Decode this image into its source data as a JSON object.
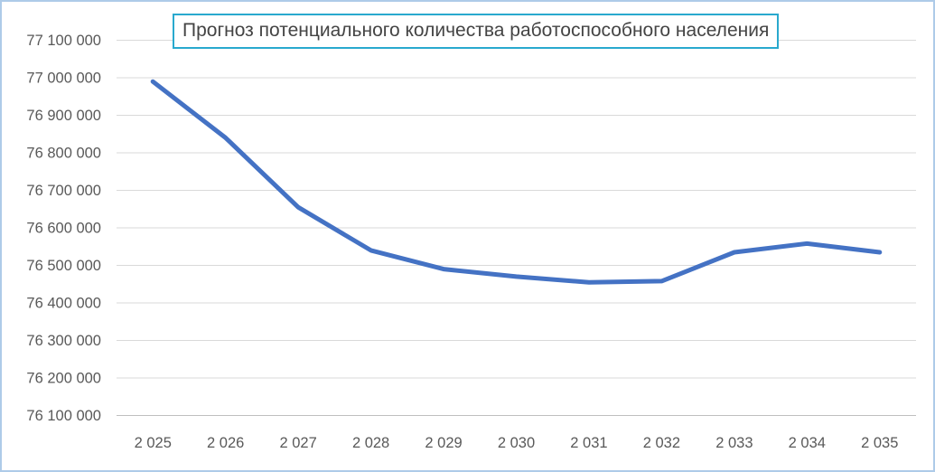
{
  "window": {
    "background_color": "#ffffff",
    "frame_border_color": "#aecbe8"
  },
  "title": {
    "text": "Прогноз потенциального количества работоспособного населения",
    "border_color": "#29a9ce",
    "text_color": "#444444"
  },
  "chart_data": {
    "type": "line",
    "title": "Прогноз потенциального количества работоспособного населения",
    "categories": [
      "2 025",
      "2 026",
      "2 027",
      "2 028",
      "2 029",
      "2 030",
      "2 031",
      "2 032",
      "2 033",
      "2 034",
      "2 035"
    ],
    "values": [
      76990000,
      76840000,
      76655000,
      76540000,
      76490000,
      76470000,
      76455000,
      76458000,
      76535000,
      76558000,
      76535000
    ],
    "xlabel": "",
    "ylabel": "",
    "ylim": [
      76100000,
      77100000
    ],
    "ytick_step": 100000,
    "ytick_labels": [
      "77 100 000",
      "77 000 000",
      "76 900 000",
      "76 800 000",
      "76 700 000",
      "76 600 000",
      "76 500 000",
      "76 400 000",
      "76 300 000",
      "76 200 000",
      "76 100 000"
    ],
    "legend": "none",
    "grid": true,
    "line_color": "#4472C4",
    "line_width": 5,
    "gridline_color": "#d9d9d9",
    "axis_line_color": "#bfbfbf",
    "tick_label_color": "#595959"
  }
}
